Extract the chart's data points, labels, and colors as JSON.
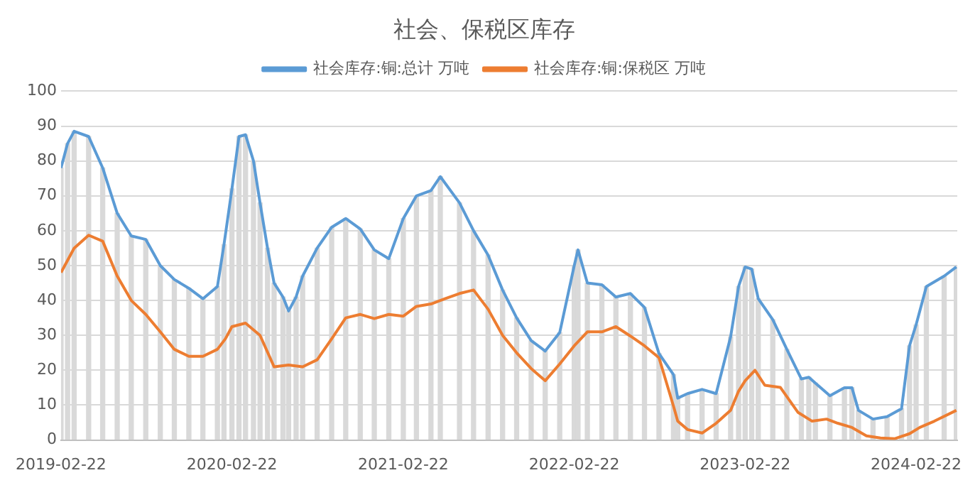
{
  "chart_data": {
    "type": "line",
    "title": "社会、保税区库存",
    "xlim": [
      "2019-02-22",
      "2024-05-20"
    ],
    "xticks": [
      "2019-02-22",
      "2020-02-22",
      "2021-02-22",
      "2022-02-22",
      "2023-02-22",
      "2024-02-22"
    ],
    "ylim": [
      0,
      100
    ],
    "yticks": [
      0,
      10,
      20,
      30,
      40,
      50,
      60,
      70,
      80,
      90,
      100
    ],
    "grid": "y",
    "legend": "top",
    "series": [
      {
        "type": "bar",
        "color": "#d9d9d9",
        "x": [
          "2019-02-22",
          "2019-03-08",
          "2019-03-22",
          "2019-04-22",
          "2019-05-22",
          "2019-06-22",
          "2019-07-22",
          "2019-08-22",
          "2019-09-22",
          "2019-10-22",
          "2019-11-22",
          "2019-12-22",
          "2020-01-22",
          "2020-02-05",
          "2020-02-22",
          "2020-03-08",
          "2020-03-22",
          "2020-04-08",
          "2020-04-22",
          "2020-05-08",
          "2020-05-22",
          "2020-06-10",
          "2020-06-22",
          "2020-07-08",
          "2020-07-22",
          "2020-08-22",
          "2020-09-22",
          "2020-10-22",
          "2020-11-22",
          "2020-12-22",
          "2021-01-22",
          "2021-02-22",
          "2021-03-22",
          "2021-04-22",
          "2021-05-12",
          "2021-06-22",
          "2021-07-22",
          "2021-08-22",
          "2021-09-22",
          "2021-10-22",
          "2021-11-22",
          "2021-12-22",
          "2022-01-22",
          "2022-02-22",
          "2022-03-02",
          "2022-03-22",
          "2022-04-22",
          "2022-05-22",
          "2022-06-22",
          "2022-07-22",
          "2022-08-22",
          "2022-09-22",
          "2022-10-01",
          "2022-10-22",
          "2022-11-22",
          "2022-12-22",
          "2023-01-22",
          "2023-02-08",
          "2023-02-22",
          "2023-03-08",
          "2023-03-22",
          "2023-04-22",
          "2023-05-22",
          "2023-06-22",
          "2023-07-08",
          "2023-07-22",
          "2023-08-22",
          "2023-09-22",
          "2023-10-08",
          "2023-10-22",
          "2023-11-22",
          "2023-12-22",
          "2024-01-22",
          "2024-02-08",
          "2024-02-22",
          "2024-03-15",
          "2024-04-22",
          "2024-05-18"
        ],
        "values": [
          78,
          85,
          88.5,
          87,
          78,
          65,
          58.5,
          57.5,
          50,
          46,
          43.5,
          40.5,
          44,
          56,
          72,
          87,
          87.5,
          80,
          68,
          55,
          45,
          41,
          37,
          41,
          47,
          55,
          61,
          63.5,
          60.5,
          54.5,
          52,
          63.5,
          70,
          71.5,
          75.5,
          68,
          60,
          53,
          43,
          35,
          28.5,
          25.5,
          30.8,
          50,
          54.5,
          45,
          44.5,
          41,
          42,
          38,
          24.8,
          18.7,
          12,
          13.3,
          14.5,
          13.3,
          29.6,
          44,
          49.6,
          49,
          40.5,
          34.5,
          26,
          17.5,
          18,
          16.3,
          12.7,
          15,
          15,
          8.5,
          6,
          6.7,
          9,
          27,
          33,
          44,
          47,
          49.6
        ]
      },
      {
        "name": "社会库存:铜:总计 万吨",
        "color": "#5b9bd5",
        "x": [
          "2019-02-22",
          "2019-03-08",
          "2019-03-22",
          "2019-04-22",
          "2019-05-22",
          "2019-06-22",
          "2019-07-22",
          "2019-08-22",
          "2019-09-22",
          "2019-10-22",
          "2019-11-22",
          "2019-12-22",
          "2020-01-22",
          "2020-02-05",
          "2020-02-22",
          "2020-03-08",
          "2020-03-22",
          "2020-04-08",
          "2020-04-22",
          "2020-05-08",
          "2020-05-22",
          "2020-06-10",
          "2020-06-22",
          "2020-07-08",
          "2020-07-22",
          "2020-08-22",
          "2020-09-22",
          "2020-10-22",
          "2020-11-22",
          "2020-12-22",
          "2021-01-22",
          "2021-02-22",
          "2021-03-22",
          "2021-04-22",
          "2021-05-12",
          "2021-06-22",
          "2021-07-22",
          "2021-08-22",
          "2021-09-22",
          "2021-10-22",
          "2021-11-22",
          "2021-12-22",
          "2022-01-22",
          "2022-02-22",
          "2022-03-02",
          "2022-03-22",
          "2022-04-22",
          "2022-05-22",
          "2022-06-22",
          "2022-07-22",
          "2022-08-22",
          "2022-09-22",
          "2022-10-01",
          "2022-10-22",
          "2022-11-22",
          "2022-12-22",
          "2023-01-22",
          "2023-02-08",
          "2023-02-22",
          "2023-03-08",
          "2023-03-22",
          "2023-04-22",
          "2023-05-22",
          "2023-06-22",
          "2023-07-08",
          "2023-07-22",
          "2023-08-22",
          "2023-09-22",
          "2023-10-08",
          "2023-10-22",
          "2023-11-22",
          "2023-12-22",
          "2024-01-22",
          "2024-02-08",
          "2024-02-22",
          "2024-03-15",
          "2024-04-22",
          "2024-05-18"
        ],
        "values": [
          78,
          85,
          88.5,
          87,
          78,
          65,
          58.5,
          57.5,
          50,
          46,
          43.5,
          40.5,
          44,
          56,
          72,
          87,
          87.5,
          80,
          68,
          55,
          45,
          41,
          37,
          41,
          47,
          55,
          61,
          63.5,
          60.5,
          54.5,
          52,
          63.5,
          70,
          71.5,
          75.5,
          68,
          60,
          53,
          43,
          35,
          28.5,
          25.5,
          30.8,
          50,
          54.5,
          45,
          44.5,
          41,
          42,
          38,
          24.8,
          18.7,
          12,
          13.3,
          14.5,
          13.3,
          29.6,
          44,
          49.6,
          49,
          40.5,
          34.5,
          26,
          17.5,
          18,
          16.3,
          12.7,
          15,
          15,
          8.5,
          6,
          6.7,
          9,
          27,
          33,
          44,
          47,
          49.6
        ]
      },
      {
        "name": "社会库存:铜:保税区 万吨",
        "color": "#ed7d31",
        "x": [
          "2019-02-22",
          "2019-03-22",
          "2019-04-22",
          "2019-05-22",
          "2019-06-22",
          "2019-07-22",
          "2019-08-22",
          "2019-09-22",
          "2019-10-22",
          "2019-11-22",
          "2019-12-22",
          "2020-01-22",
          "2020-02-08",
          "2020-02-22",
          "2020-03-22",
          "2020-04-22",
          "2020-05-22",
          "2020-06-22",
          "2020-07-22",
          "2020-08-22",
          "2020-09-22",
          "2020-10-22",
          "2020-11-22",
          "2020-12-22",
          "2021-01-22",
          "2021-02-22",
          "2021-03-22",
          "2021-04-22",
          "2021-05-22",
          "2021-06-22",
          "2021-07-22",
          "2021-08-22",
          "2021-09-22",
          "2021-10-22",
          "2021-11-22",
          "2021-12-22",
          "2022-01-22",
          "2022-02-22",
          "2022-03-22",
          "2022-04-22",
          "2022-05-22",
          "2022-06-22",
          "2022-07-22",
          "2022-08-22",
          "2022-09-22",
          "2022-10-01",
          "2022-10-22",
          "2022-11-22",
          "2022-12-22",
          "2023-01-22",
          "2023-02-08",
          "2023-02-22",
          "2023-03-15",
          "2023-04-05",
          "2023-05-08",
          "2023-06-15",
          "2023-07-15",
          "2023-08-15",
          "2023-09-08",
          "2023-10-08",
          "2023-11-08",
          "2023-12-08",
          "2024-01-08",
          "2024-02-08",
          "2024-03-01",
          "2024-04-01",
          "2024-05-18"
        ],
        "values": [
          48,
          55,
          58.7,
          57,
          47,
          40,
          36,
          31,
          26,
          24,
          24,
          26,
          29,
          32.5,
          33.5,
          30,
          21,
          21.5,
          21,
          23,
          29,
          35,
          36,
          34.8,
          36,
          35.5,
          38.3,
          39,
          40.5,
          42,
          43,
          37.5,
          30,
          25,
          20.5,
          17,
          21.8,
          27,
          31,
          31,
          32.5,
          29.8,
          27,
          23.6,
          9.7,
          5.4,
          3,
          2,
          4.8,
          8.5,
          14,
          17,
          20,
          15.7,
          15.1,
          7.9,
          5.4,
          6,
          4.8,
          3.6,
          1.2,
          0.6,
          0.4,
          1.8,
          3.6,
          5.4,
          8.5
        ]
      }
    ]
  }
}
